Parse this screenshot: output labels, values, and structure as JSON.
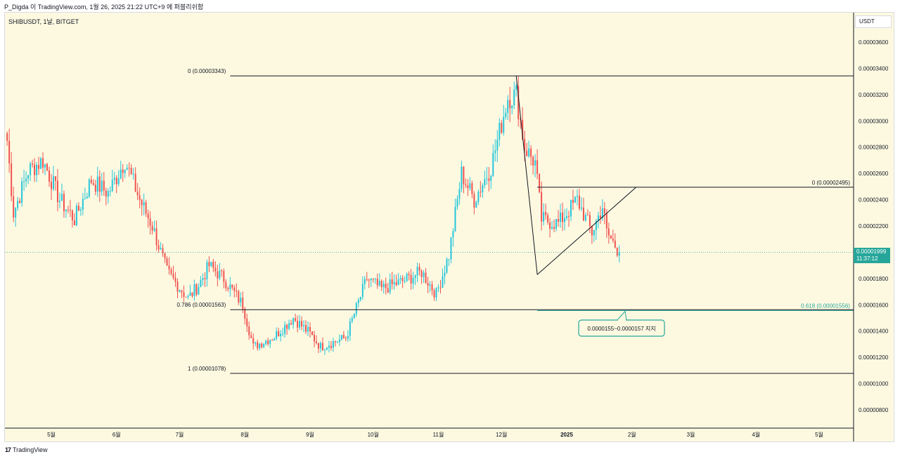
{
  "header": {
    "caption": "P_Digda 이 TradingView.com, 1월 26, 2025 21:22 UTC+9 에 퍼블리쉬함"
  },
  "symbol": {
    "label": "SHIBUSDT, 1날, BITGET"
  },
  "price_axis": {
    "currency": "USDT",
    "current_price": "0.00001999",
    "countdown": "11:37:12"
  },
  "footer": {
    "logo_mark": "17",
    "brand": "TradingView"
  },
  "annotation": {
    "support_note": "0.0000155~0.0000157 지지"
  },
  "colors": {
    "background": "#fdf9e1",
    "up": "#26c6da",
    "down": "#ef5350",
    "line": "#131722",
    "fib_teal": "#26a69a"
  },
  "chart_data": {
    "type": "candlestick",
    "title": "",
    "xlabel": "",
    "ylabel": "USDT",
    "ylim": [
      6.4e-06,
      3.865e-05
    ],
    "grid": false,
    "y_ticks": [
      "0.00003600",
      "0.00003400",
      "0.00003200",
      "0.00003000",
      "0.00002800",
      "0.00002600",
      "0.00002400",
      "0.00002200",
      "0.00002000",
      "0.00001800",
      "0.00001600",
      "0.00001400",
      "0.00001200",
      "0.00001000",
      "0.00000800"
    ],
    "x_ticks": [
      "5월",
      "6월",
      "7월",
      "8월",
      "9월",
      "10월",
      "11월",
      "12월",
      "2025",
      "2월",
      "3월",
      "4월",
      "5월"
    ],
    "x_tick_dates": [
      "2024-05-01",
      "2024-06-01",
      "2024-07-01",
      "2024-08-01",
      "2024-09-01",
      "2024-10-01",
      "2024-11-01",
      "2024-12-01",
      "2025-01-01",
      "2025-02-01",
      "2025-03-01",
      "2025-04-01",
      "2025-05-01"
    ],
    "close_path": [
      {
        "date": "2024-04-10",
        "close": 2.85e-05
      },
      {
        "date": "2024-04-13",
        "close": 2.3e-05
      },
      {
        "date": "2024-04-20",
        "close": 2.62e-05
      },
      {
        "date": "2024-04-27",
        "close": 2.7e-05
      },
      {
        "date": "2024-05-05",
        "close": 2.4e-05
      },
      {
        "date": "2024-05-12",
        "close": 2.25e-05
      },
      {
        "date": "2024-05-20",
        "close": 2.55e-05
      },
      {
        "date": "2024-05-28",
        "close": 2.45e-05
      },
      {
        "date": "2024-06-05",
        "close": 2.7e-05
      },
      {
        "date": "2024-06-12",
        "close": 2.4e-05
      },
      {
        "date": "2024-06-18",
        "close": 2.2e-05
      },
      {
        "date": "2024-06-25",
        "close": 1.85e-05
      },
      {
        "date": "2024-07-05",
        "close": 1.65e-05
      },
      {
        "date": "2024-07-10",
        "close": 1.75e-05
      },
      {
        "date": "2024-07-15",
        "close": 1.9e-05
      },
      {
        "date": "2024-07-22",
        "close": 1.8e-05
      },
      {
        "date": "2024-07-31",
        "close": 1.6e-05
      },
      {
        "date": "2024-08-05",
        "close": 1.28e-05
      },
      {
        "date": "2024-08-15",
        "close": 1.36e-05
      },
      {
        "date": "2024-08-24",
        "close": 1.5e-05
      },
      {
        "date": "2024-09-01",
        "close": 1.38e-05
      },
      {
        "date": "2024-09-06",
        "close": 1.28e-05
      },
      {
        "date": "2024-09-18",
        "close": 1.35e-05
      },
      {
        "date": "2024-09-28",
        "close": 1.8e-05
      },
      {
        "date": "2024-10-05",
        "close": 1.72e-05
      },
      {
        "date": "2024-10-15",
        "close": 1.78e-05
      },
      {
        "date": "2024-10-24",
        "close": 1.85e-05
      },
      {
        "date": "2024-10-31",
        "close": 1.68e-05
      },
      {
        "date": "2024-11-06",
        "close": 1.98e-05
      },
      {
        "date": "2024-11-12",
        "close": 2.6e-05
      },
      {
        "date": "2024-11-18",
        "close": 2.4e-05
      },
      {
        "date": "2024-11-26",
        "close": 2.65e-05
      },
      {
        "date": "2024-12-04",
        "close": 3.18e-05
      },
      {
        "date": "2024-12-08",
        "close": 3.2e-05
      },
      {
        "date": "2024-12-12",
        "close": 2.8e-05
      },
      {
        "date": "2024-12-17",
        "close": 2.68e-05
      },
      {
        "date": "2024-12-20",
        "close": 2.25e-05
      },
      {
        "date": "2024-12-28",
        "close": 2.22e-05
      },
      {
        "date": "2025-01-06",
        "close": 2.4e-05
      },
      {
        "date": "2025-01-13",
        "close": 2.15e-05
      },
      {
        "date": "2025-01-18",
        "close": 2.35e-05
      },
      {
        "date": "2025-01-20",
        "close": 2.15e-05
      },
      {
        "date": "2025-01-26",
        "close": 2e-05
      }
    ],
    "current_price": 1.999e-05,
    "fibonacci": [
      {
        "label": "0 (0.00003343)",
        "level": 0,
        "price": 3.343e-05,
        "from": "2024-07-25",
        "to": "2025-05-31"
      },
      {
        "label": "0.786 (0.00001563)",
        "level": 0.786,
        "price": 1.563e-05,
        "from": "2024-07-25",
        "to": "2025-05-31"
      },
      {
        "label": "1 (0.00001078)",
        "level": 1,
        "price": 1.078e-05,
        "from": "2024-07-25",
        "to": "2025-05-31"
      },
      {
        "label": "0 (0.00002495)",
        "level": 0,
        "price": 2.495e-05,
        "from": "2024-12-18",
        "to": "2025-05-31"
      },
      {
        "label": "0.618 (0.00001556)",
        "level": 0.618,
        "price": 1.556e-05,
        "from": "2024-12-18",
        "to": "2025-05-31"
      }
    ],
    "trend_lines": [
      {
        "from": {
          "date": "2024-12-08",
          "price": 3.343e-05
        },
        "to": {
          "date": "2024-12-18",
          "price": 1.83e-05
        }
      },
      {
        "from": {
          "date": "2024-12-18",
          "price": 1.83e-05
        },
        "to": {
          "date": "2025-02-03",
          "price": 2.495e-05
        }
      }
    ]
  }
}
